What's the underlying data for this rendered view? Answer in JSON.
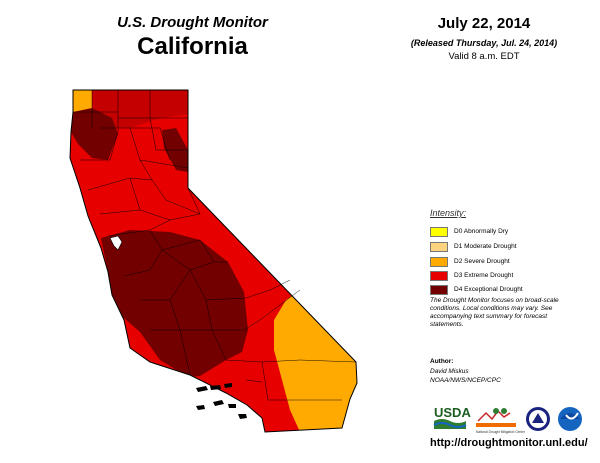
{
  "header": {
    "title": "U.S. Drought Monitor",
    "state": "California",
    "date": "July 22, 2014",
    "released": "(Released Thursday, Jul. 24, 2014)",
    "valid": "Valid 8 a.m. EDT"
  },
  "legend": {
    "title": "Intensity:",
    "items": [
      {
        "label": "D0 Abnormally Dry",
        "color": "#ffff00"
      },
      {
        "label": "D1 Moderate Drought",
        "color": "#fcd37f"
      },
      {
        "label": "D2 Severe Drought",
        "color": "#ffaa00"
      },
      {
        "label": "D3 Extreme Drought",
        "color": "#e60000"
      },
      {
        "label": "D4 Exceptional Drought",
        "color": "#730000"
      }
    ]
  },
  "note": "The Drought Monitor focuses on broad-scale conditions. Local conditions may vary. See accompanying text summary for forecast statements.",
  "author": {
    "label": "Author:",
    "name": "David Miskus",
    "org": "NOAA/NWS/NCEP/CPC"
  },
  "logos": {
    "usda": "USDA",
    "ndmc": "National Drought Mitigation Center"
  },
  "url": "http://droughtmonitor.unl.edu/"
}
